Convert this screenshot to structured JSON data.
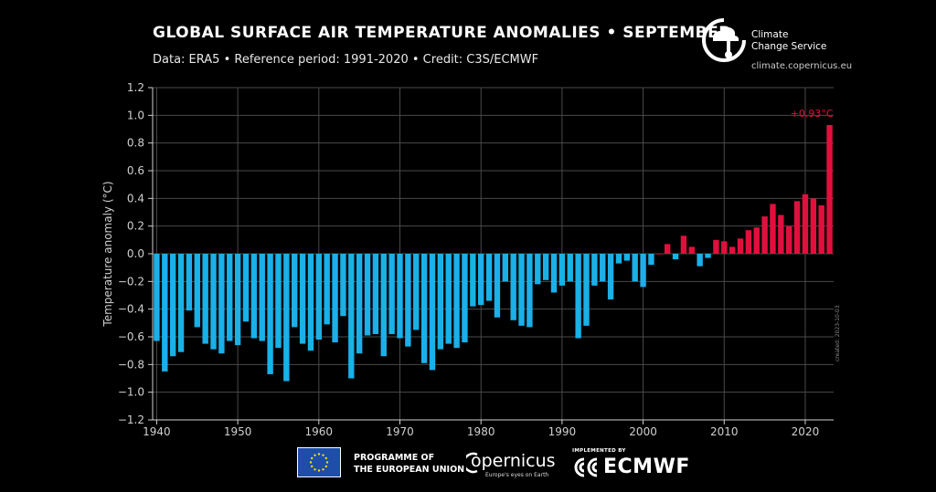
{
  "header": {
    "title": "GLOBAL SURFACE AIR TEMPERATURE ANOMALIES • SEPTEMBER",
    "subtitle": "Data: ERA5 • Reference period: 1991-2020 • Credit: C3S/ECMWF"
  },
  "brand": {
    "name_line1": "Climate",
    "name_line2": "Change Service",
    "url": "climate.copernicus.eu"
  },
  "footer": {
    "eu_line1": "PROGRAMME OF",
    "eu_line2": "THE EUROPEAN UNION",
    "copernicus": "opernicus",
    "copernicus_tagline": "Europe's eyes on Earth",
    "implemented_by": "IMPLEMENTED BY",
    "ecmwf": "ECMWF"
  },
  "created_note": "created: 2023-10-03",
  "colors": {
    "negative": "#1ab0e8",
    "positive": "#e0103d",
    "grid": "#4a4a4a",
    "axis_text": "#d0d0d0"
  },
  "chart_data": {
    "type": "bar",
    "title": "GLOBAL SURFACE AIR TEMPERATURE ANOMALIES • SEPTEMBER",
    "xlabel": "",
    "ylabel": "Temperature anomaly (°C)",
    "ylim": [
      -1.2,
      1.2
    ],
    "xlim": [
      1939.5,
      2023.5
    ],
    "yticks": [
      1.2,
      1.0,
      0.8,
      0.6,
      0.4,
      0.2,
      0.0,
      -0.2,
      -0.4,
      -0.6,
      -0.8,
      -1.0,
      -1.2
    ],
    "ytick_labels": [
      "1.2",
      "1.0",
      "0.8",
      "0.6",
      "0.4",
      "0.2",
      "0.0",
      "−0.2",
      "−0.4",
      "−0.6",
      "−0.8",
      "−1.0",
      "−1.2"
    ],
    "xticks": [
      1940,
      1950,
      1960,
      1970,
      1980,
      1990,
      2000,
      2010,
      2020
    ],
    "grid": true,
    "annotation": {
      "year": 2023,
      "text": "+0.93°C"
    },
    "x": [
      1940,
      1941,
      1942,
      1943,
      1944,
      1945,
      1946,
      1947,
      1948,
      1949,
      1950,
      1951,
      1952,
      1953,
      1954,
      1955,
      1956,
      1957,
      1958,
      1959,
      1960,
      1961,
      1962,
      1963,
      1964,
      1965,
      1966,
      1967,
      1968,
      1969,
      1970,
      1971,
      1972,
      1973,
      1974,
      1975,
      1976,
      1977,
      1978,
      1979,
      1980,
      1981,
      1982,
      1983,
      1984,
      1985,
      1986,
      1987,
      1988,
      1989,
      1990,
      1991,
      1992,
      1993,
      1994,
      1995,
      1996,
      1997,
      1998,
      1999,
      2000,
      2001,
      2002,
      2003,
      2004,
      2005,
      2006,
      2007,
      2008,
      2009,
      2010,
      2011,
      2012,
      2013,
      2014,
      2015,
      2016,
      2017,
      2018,
      2019,
      2020,
      2021,
      2022,
      2023
    ],
    "values": [
      -0.63,
      -0.85,
      -0.74,
      -0.71,
      -0.41,
      -0.53,
      -0.65,
      -0.69,
      -0.72,
      -0.63,
      -0.66,
      -0.49,
      -0.61,
      -0.63,
      -0.87,
      -0.68,
      -0.92,
      -0.53,
      -0.65,
      -0.7,
      -0.62,
      -0.51,
      -0.64,
      -0.45,
      -0.9,
      -0.72,
      -0.59,
      -0.58,
      -0.74,
      -0.58,
      -0.61,
      -0.67,
      -0.55,
      -0.79,
      -0.84,
      -0.69,
      -0.65,
      -0.68,
      -0.64,
      -0.38,
      -0.37,
      -0.34,
      -0.46,
      -0.2,
      -0.48,
      -0.52,
      -0.53,
      -0.22,
      -0.19,
      -0.28,
      -0.23,
      -0.2,
      -0.61,
      -0.52,
      -0.23,
      -0.2,
      -0.33,
      -0.07,
      -0.05,
      -0.2,
      -0.24,
      -0.08,
      0.0,
      0.07,
      -0.04,
      0.13,
      0.05,
      -0.09,
      -0.03,
      0.1,
      0.09,
      0.05,
      0.11,
      0.17,
      0.19,
      0.27,
      0.36,
      0.28,
      0.2,
      0.38,
      0.43,
      0.4,
      0.35,
      0.93
    ]
  }
}
